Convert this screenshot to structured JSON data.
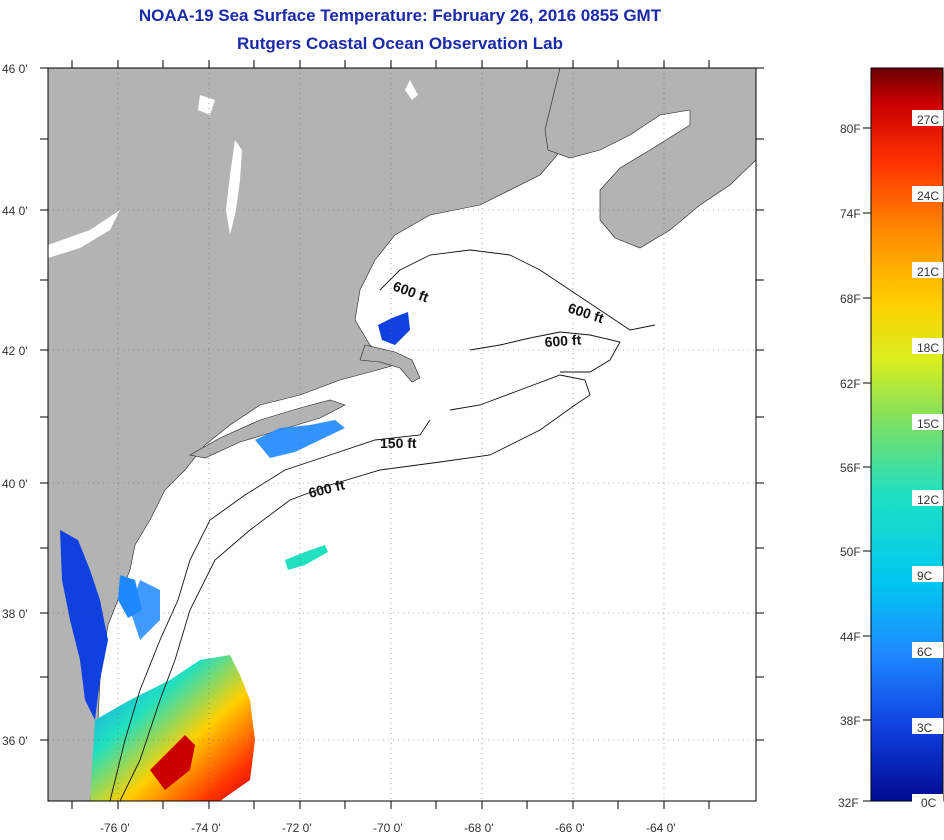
{
  "title_line1": "NOAA-19 Sea Surface Temperature:  February 26, 2016 0855 GMT",
  "title_line2": "Rutgers Coastal Ocean Observation Lab",
  "lat_labels": [
    "46 0'",
    "44 0'",
    "42 0'",
    "40 0'",
    "38 0'",
    "36 0'"
  ],
  "lon_labels": [
    "-76 0'",
    "-74 0'",
    "-72 0'",
    "-70 0'",
    "-68 0'",
    "-66 0'",
    "-64 0'"
  ],
  "depth_labels": {
    "gulf_maine_600": "600 ft",
    "georges_600_east": "600 ft",
    "georges_600_south": "600 ft",
    "shelf_150": "150 ft",
    "shelf_600": "600 ft"
  },
  "colorbar": {
    "fahrenheit": [
      "80F",
      "74F",
      "68F",
      "62F",
      "56F",
      "50F",
      "44F",
      "38F",
      "32F"
    ],
    "celsius": [
      "27C",
      "24C",
      "21C",
      "18C",
      "15C",
      "12C",
      "9C",
      "6C",
      "3C",
      "0C"
    ],
    "colors": [
      "#6a0000",
      "#cc0000",
      "#ff3300",
      "#ff8800",
      "#ffd000",
      "#d8ee20",
      "#80e060",
      "#20e0c0",
      "#00c8f0",
      "#1e88ff",
      "#1040e0",
      "#000a90"
    ]
  },
  "colors": {
    "land": "#b3b3b3",
    "ocean_nodata": "#ffffff",
    "title": "#1a2aa8"
  }
}
